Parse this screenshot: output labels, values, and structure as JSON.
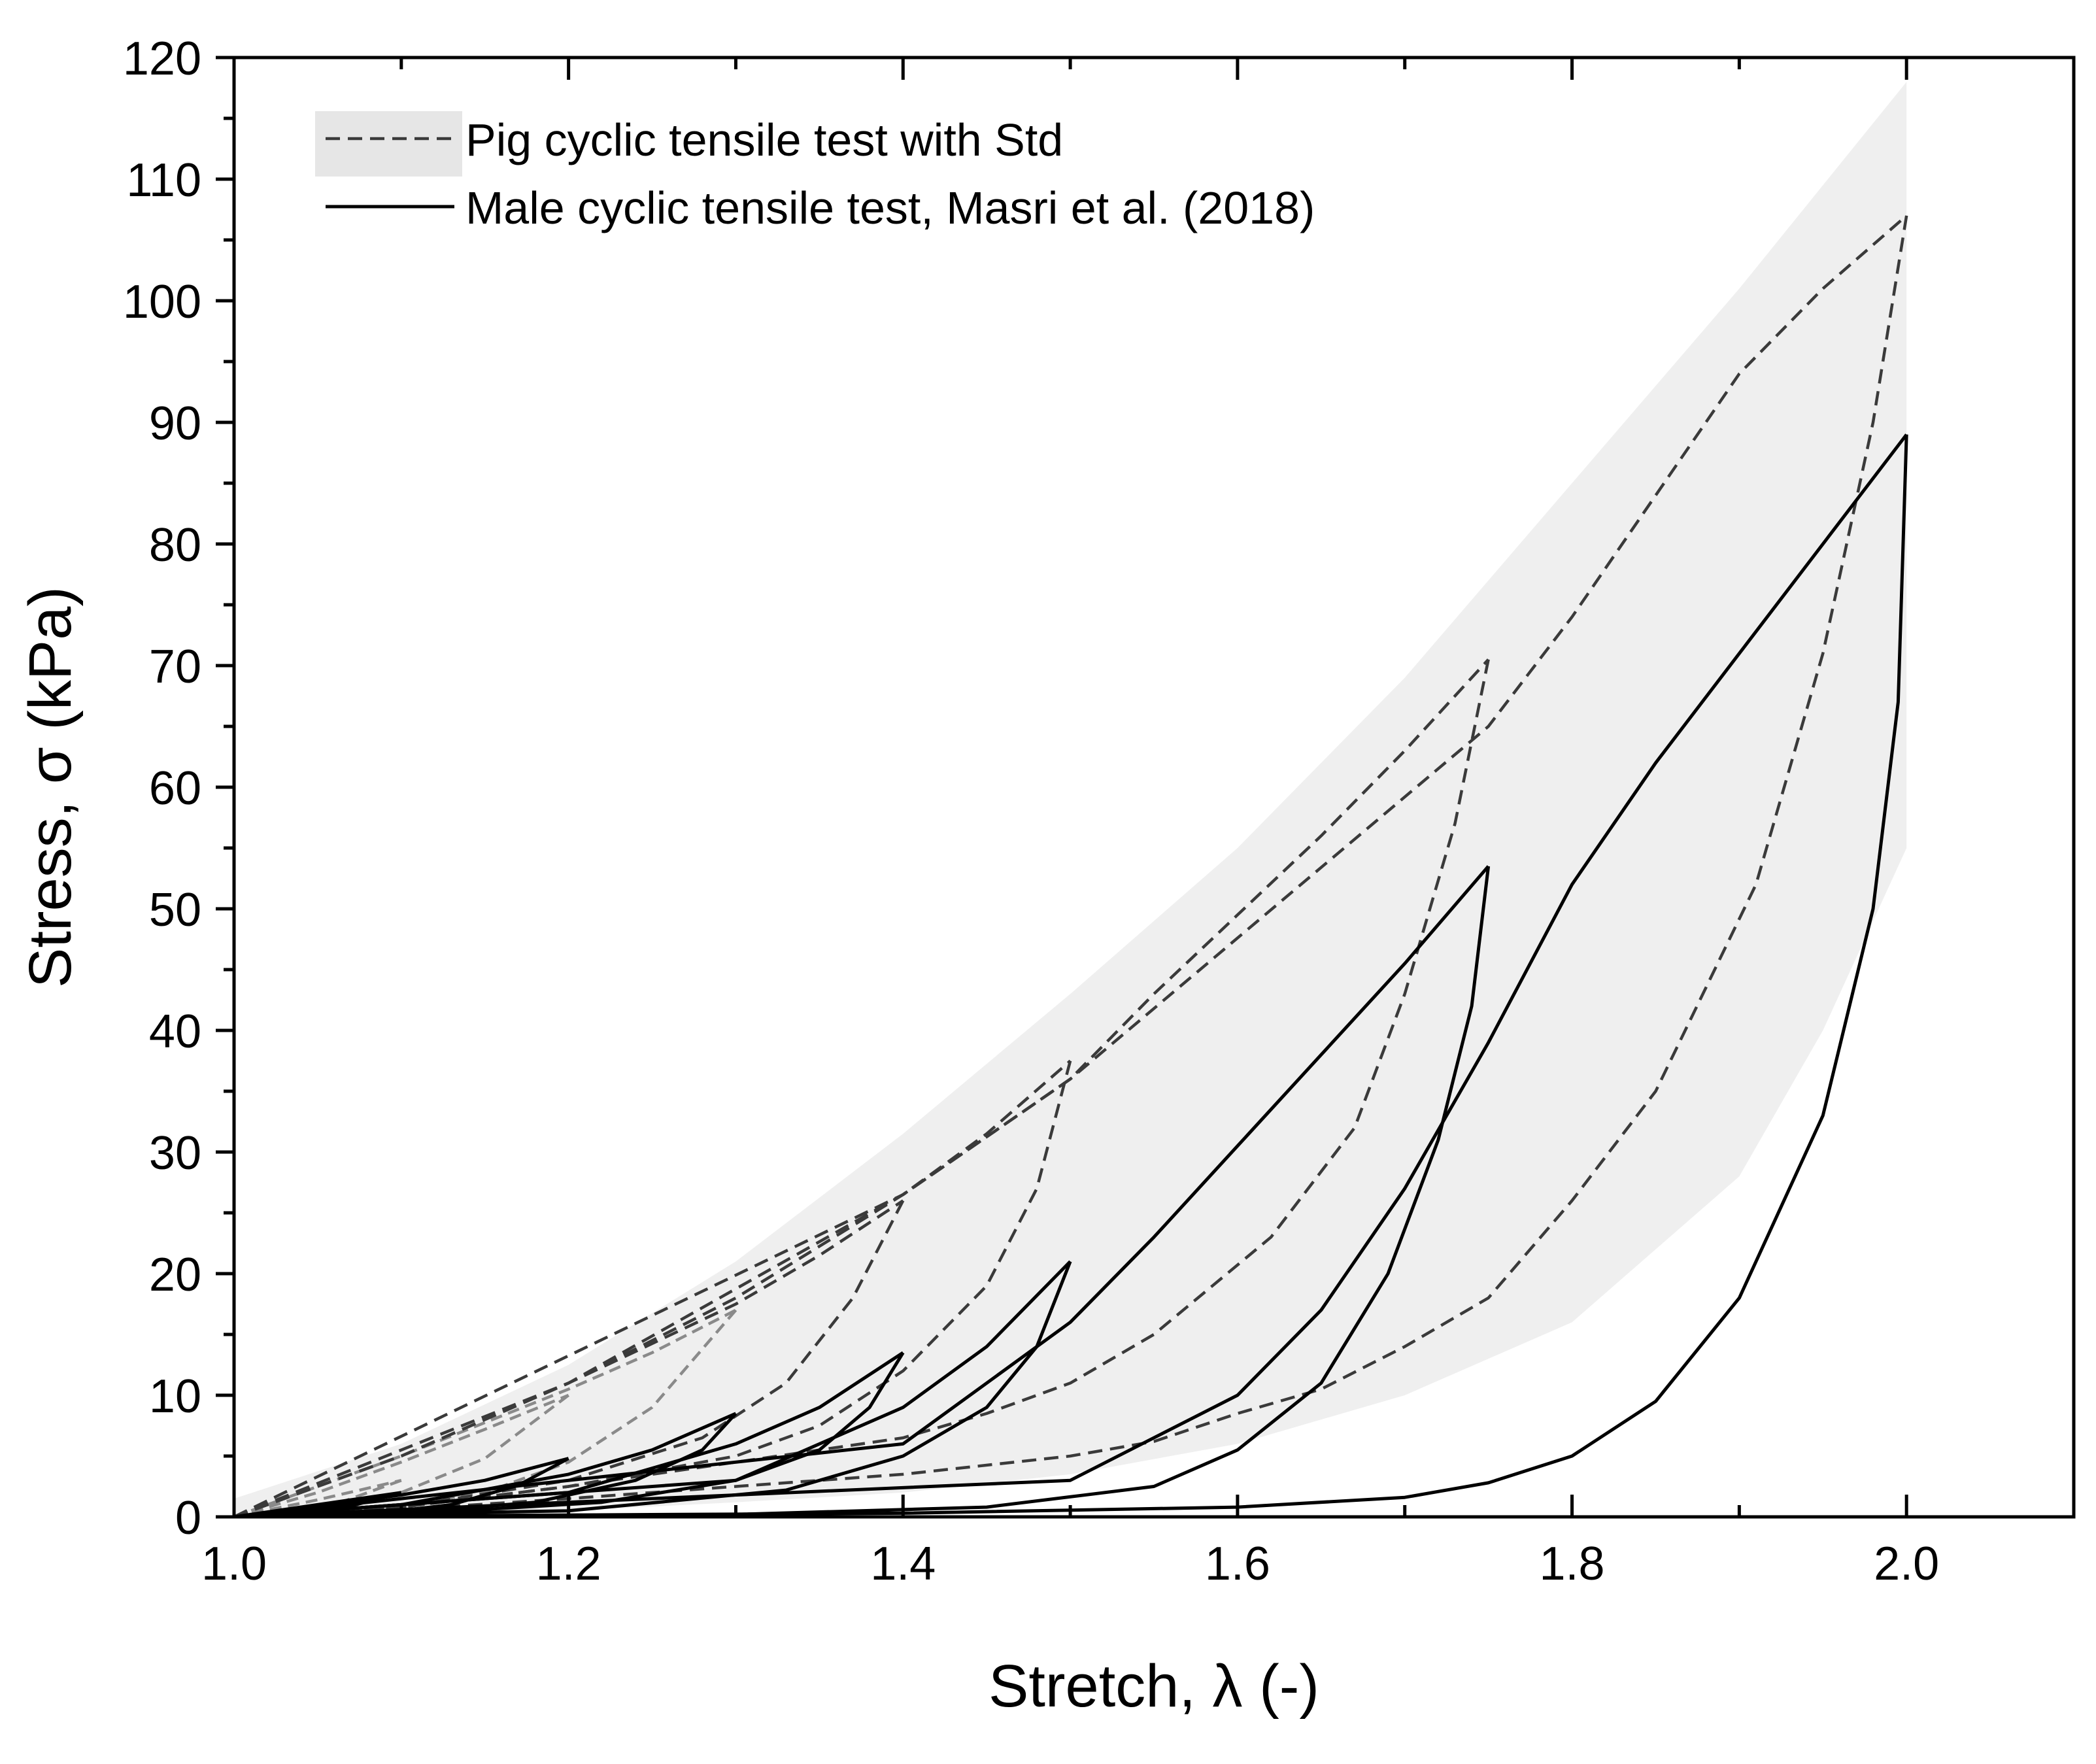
{
  "chart_data": {
    "type": "line",
    "title": "",
    "xlabel": "Stretch, λ (-)",
    "ylabel": "Stress, σ (kPa)",
    "xlim": [
      1.0,
      2.1
    ],
    "ylim": [
      0,
      120
    ],
    "xticks": [
      1.0,
      1.2,
      1.4,
      1.6,
      1.8,
      2.0
    ],
    "xtick_labels": [
      "1.0",
      "1.2",
      "1.4",
      "1.6",
      "1.8",
      "2.0"
    ],
    "yticks": [
      0,
      10,
      20,
      30,
      40,
      50,
      60,
      70,
      80,
      90,
      100,
      110,
      120
    ],
    "ytick_labels": [
      "0",
      "10",
      "20",
      "30",
      "40",
      "50",
      "60",
      "70",
      "80",
      "90",
      "100",
      "110",
      "120"
    ],
    "grid": false,
    "legend_position": "top-left",
    "legend": [
      {
        "label": "Pig cyclic tensile test with Std",
        "style": "dashed",
        "fill": "#e6e6e6"
      },
      {
        "label": "Male cyclic  tensile test, Masri et al. (2018)",
        "style": "solid"
      }
    ],
    "series": [
      {
        "name": "Pig cyclic tensile test with Std",
        "style": "dashed",
        "loops": [
          {
            "max_stretch": 1.1,
            "loading": [
              [
                1.0,
                0
              ],
              [
                1.05,
                1.4
              ],
              [
                1.1,
                3.0
              ]
            ],
            "unloading": [
              [
                1.1,
                3.0
              ],
              [
                1.06,
                1.0
              ],
              [
                1.0,
                0
              ]
            ]
          },
          {
            "max_stretch": 1.2,
            "loading": [
              [
                1.0,
                0
              ],
              [
                1.05,
                2
              ],
              [
                1.1,
                4.5
              ],
              [
                1.15,
                7.2
              ],
              [
                1.2,
                10
              ]
            ],
            "unloading": [
              [
                1.2,
                10
              ],
              [
                1.15,
                4.8
              ],
              [
                1.1,
                2.0
              ],
              [
                1.05,
                0.6
              ],
              [
                1.0,
                0
              ]
            ]
          },
          {
            "max_stretch": 1.3,
            "loading": [
              [
                1.0,
                0
              ],
              [
                1.1,
                5.0
              ],
              [
                1.2,
                10.5
              ],
              [
                1.25,
                13.5
              ],
              [
                1.3,
                17
              ]
            ],
            "unloading": [
              [
                1.3,
                17
              ],
              [
                1.25,
                9.0
              ],
              [
                1.2,
                4.5
              ],
              [
                1.15,
                2.0
              ],
              [
                1.08,
                0.5
              ],
              [
                1.0,
                0
              ]
            ]
          },
          {
            "max_stretch": 1.4,
            "loading": [
              [
                1.0,
                0
              ],
              [
                1.1,
                5
              ],
              [
                1.2,
                11
              ],
              [
                1.3,
                17.5
              ],
              [
                1.35,
                21.5
              ],
              [
                1.4,
                26
              ]
            ],
            "unloading": [
              [
                1.4,
                26
              ],
              [
                1.37,
                18
              ],
              [
                1.33,
                11
              ],
              [
                1.28,
                6.5
              ],
              [
                1.2,
                3
              ],
              [
                1.1,
                0.8
              ],
              [
                1.0,
                0
              ]
            ]
          },
          {
            "max_stretch": 1.5,
            "loading": [
              [
                1.0,
                0
              ],
              [
                1.1,
                5
              ],
              [
                1.2,
                11
              ],
              [
                1.3,
                18
              ],
              [
                1.4,
                26.5
              ],
              [
                1.45,
                31.5
              ],
              [
                1.5,
                37.5
              ]
            ],
            "unloading": [
              [
                1.5,
                37.5
              ],
              [
                1.48,
                27
              ],
              [
                1.45,
                19
              ],
              [
                1.4,
                12
              ],
              [
                1.35,
                7.5
              ],
              [
                1.3,
                5
              ],
              [
                1.2,
                2.5
              ],
              [
                1.1,
                0.8
              ],
              [
                1.0,
                0
              ]
            ]
          },
          {
            "max_stretch": 1.75,
            "loading": [
              [
                1.0,
                0
              ],
              [
                1.2,
                11
              ],
              [
                1.4,
                26.5
              ],
              [
                1.5,
                36
              ],
              [
                1.55,
                43
              ],
              [
                1.6,
                49.5
              ],
              [
                1.65,
                56
              ],
              [
                1.7,
                63
              ],
              [
                1.75,
                70.5
              ]
            ],
            "unloading": [
              [
                1.75,
                70.5
              ],
              [
                1.73,
                57
              ],
              [
                1.7,
                43
              ],
              [
                1.67,
                32
              ],
              [
                1.62,
                23
              ],
              [
                1.55,
                15
              ],
              [
                1.5,
                11
              ],
              [
                1.45,
                8.5
              ],
              [
                1.4,
                6.5
              ],
              [
                1.3,
                4.5
              ],
              [
                1.2,
                2.5
              ],
              [
                1.1,
                0.8
              ],
              [
                1.0,
                0
              ]
            ]
          },
          {
            "max_stretch": 2.0,
            "loading": [
              [
                1.0,
                0
              ],
              [
                1.4,
                26.5
              ],
              [
                1.5,
                36
              ],
              [
                1.75,
                65
              ],
              [
                1.8,
                74
              ],
              [
                1.85,
                84
              ],
              [
                1.9,
                94
              ],
              [
                1.95,
                101
              ],
              [
                2.0,
                107
              ]
            ],
            "unloading": [
              [
                2.0,
                107
              ],
              [
                1.98,
                90
              ],
              [
                1.95,
                71
              ],
              [
                1.91,
                52
              ],
              [
                1.85,
                35
              ],
              [
                1.8,
                26
              ],
              [
                1.75,
                18
              ],
              [
                1.7,
                14
              ],
              [
                1.65,
                10.5
              ],
              [
                1.6,
                8.5
              ],
              [
                1.55,
                6.2
              ],
              [
                1.5,
                5
              ],
              [
                1.4,
                3.5
              ],
              [
                1.3,
                2.5
              ],
              [
                1.2,
                1.5
              ],
              [
                1.1,
                0.6
              ],
              [
                1.0,
                0
              ]
            ]
          }
        ]
      },
      {
        "name": "Male cyclic  tensile test, Masri et al. (2018)",
        "style": "solid",
        "loops": [
          {
            "max_stretch": 1.1,
            "loading": [
              [
                1.0,
                0
              ],
              [
                1.05,
                1.0
              ],
              [
                1.1,
                2.0
              ]
            ],
            "unloading": [
              [
                1.1,
                2.0
              ],
              [
                1.07,
                0.9
              ],
              [
                1.03,
                0.2
              ],
              [
                1.0,
                0
              ]
            ]
          },
          {
            "max_stretch": 1.2,
            "loading": [
              [
                1.0,
                0
              ],
              [
                1.1,
                1.8
              ],
              [
                1.15,
                3.0
              ],
              [
                1.2,
                4.8
              ]
            ],
            "unloading": [
              [
                1.2,
                4.8
              ],
              [
                1.17,
                2.6
              ],
              [
                1.13,
                1.0
              ],
              [
                1.08,
                0.2
              ],
              [
                1.0,
                0
              ]
            ]
          },
          {
            "max_stretch": 1.3,
            "loading": [
              [
                1.0,
                0
              ],
              [
                1.1,
                1.0
              ],
              [
                1.2,
                3.5
              ],
              [
                1.25,
                5.5
              ],
              [
                1.3,
                8.5
              ]
            ],
            "unloading": [
              [
                1.3,
                8.5
              ],
              [
                1.28,
                5.5
              ],
              [
                1.24,
                3.0
              ],
              [
                1.18,
                1.2
              ],
              [
                1.1,
                0.3
              ],
              [
                1.0,
                0
              ]
            ]
          },
          {
            "max_stretch": 1.4,
            "loading": [
              [
                1.0,
                0
              ],
              [
                1.2,
                2.0
              ],
              [
                1.3,
                6.0
              ],
              [
                1.35,
                9.0
              ],
              [
                1.4,
                13.5
              ]
            ],
            "unloading": [
              [
                1.4,
                13.5
              ],
              [
                1.38,
                9.0
              ],
              [
                1.35,
                5.5
              ],
              [
                1.3,
                3.0
              ],
              [
                1.22,
                1.2
              ],
              [
                1.1,
                0.2
              ],
              [
                1.0,
                0
              ]
            ]
          },
          {
            "max_stretch": 1.5,
            "loading": [
              [
                1.0,
                0
              ],
              [
                1.3,
                3.0
              ],
              [
                1.4,
                9.0
              ],
              [
                1.45,
                14.0
              ],
              [
                1.5,
                21.0
              ]
            ],
            "unloading": [
              [
                1.5,
                21.0
              ],
              [
                1.48,
                14.0
              ],
              [
                1.45,
                9.0
              ],
              [
                1.4,
                5.0
              ],
              [
                1.33,
                2.2
              ],
              [
                1.2,
                0.5
              ],
              [
                1.0,
                0
              ]
            ]
          },
          {
            "max_stretch": 1.75,
            "loading": [
              [
                1.0,
                0
              ],
              [
                1.4,
                6.0
              ],
              [
                1.5,
                16.0
              ],
              [
                1.55,
                23.0
              ],
              [
                1.6,
                30.5
              ],
              [
                1.65,
                38.0
              ],
              [
                1.7,
                45.5
              ],
              [
                1.75,
                53.5
              ]
            ],
            "unloading": [
              [
                1.75,
                53.5
              ],
              [
                1.74,
                42.0
              ],
              [
                1.72,
                31.0
              ],
              [
                1.69,
                20.0
              ],
              [
                1.65,
                11.0
              ],
              [
                1.6,
                5.5
              ],
              [
                1.55,
                2.5
              ],
              [
                1.45,
                0.8
              ],
              [
                1.3,
                0.2
              ],
              [
                1.0,
                0
              ]
            ]
          },
          {
            "max_stretch": 2.0,
            "loading": [
              [
                1.0,
                0
              ],
              [
                1.5,
                3.0
              ],
              [
                1.6,
                10.0
              ],
              [
                1.65,
                17.0
              ],
              [
                1.7,
                27.0
              ],
              [
                1.75,
                39.0
              ],
              [
                1.8,
                52.0
              ],
              [
                1.85,
                62.0
              ],
              [
                1.9,
                71.0
              ],
              [
                1.95,
                80.0
              ],
              [
                2.0,
                89.0
              ]
            ],
            "unloading": [
              [
                2.0,
                89.0
              ],
              [
                1.995,
                67.0
              ],
              [
                1.98,
                50.0
              ],
              [
                1.95,
                33.0
              ],
              [
                1.9,
                18.0
              ],
              [
                1.85,
                9.5
              ],
              [
                1.8,
                5.0
              ],
              [
                1.75,
                2.8
              ],
              [
                1.7,
                1.6
              ],
              [
                1.6,
                0.8
              ],
              [
                1.4,
                0.3
              ],
              [
                1.0,
                0
              ]
            ]
          }
        ]
      }
    ],
    "std_band": {
      "name": "Std",
      "upper": [
        [
          1.0,
          1.5
        ],
        [
          1.1,
          6.0
        ],
        [
          1.2,
          12.5
        ],
        [
          1.3,
          21.0
        ],
        [
          1.4,
          31.5
        ],
        [
          1.5,
          43.0
        ],
        [
          1.6,
          55.0
        ],
        [
          1.7,
          69.0
        ],
        [
          1.75,
          77.0
        ],
        [
          1.8,
          85.0
        ],
        [
          1.9,
          101.0
        ],
        [
          2.0,
          118.0
        ]
      ],
      "lower": [
        [
          2.0,
          55.0
        ],
        [
          1.95,
          40.0
        ],
        [
          1.9,
          28.0
        ],
        [
          1.8,
          16.0
        ],
        [
          1.7,
          10.0
        ],
        [
          1.6,
          6.0
        ],
        [
          1.5,
          3.5
        ],
        [
          1.4,
          2.0
        ],
        [
          1.3,
          1.2
        ],
        [
          1.2,
          0.5
        ],
        [
          1.1,
          0.1
        ],
        [
          1.0,
          0
        ]
      ]
    }
  }
}
